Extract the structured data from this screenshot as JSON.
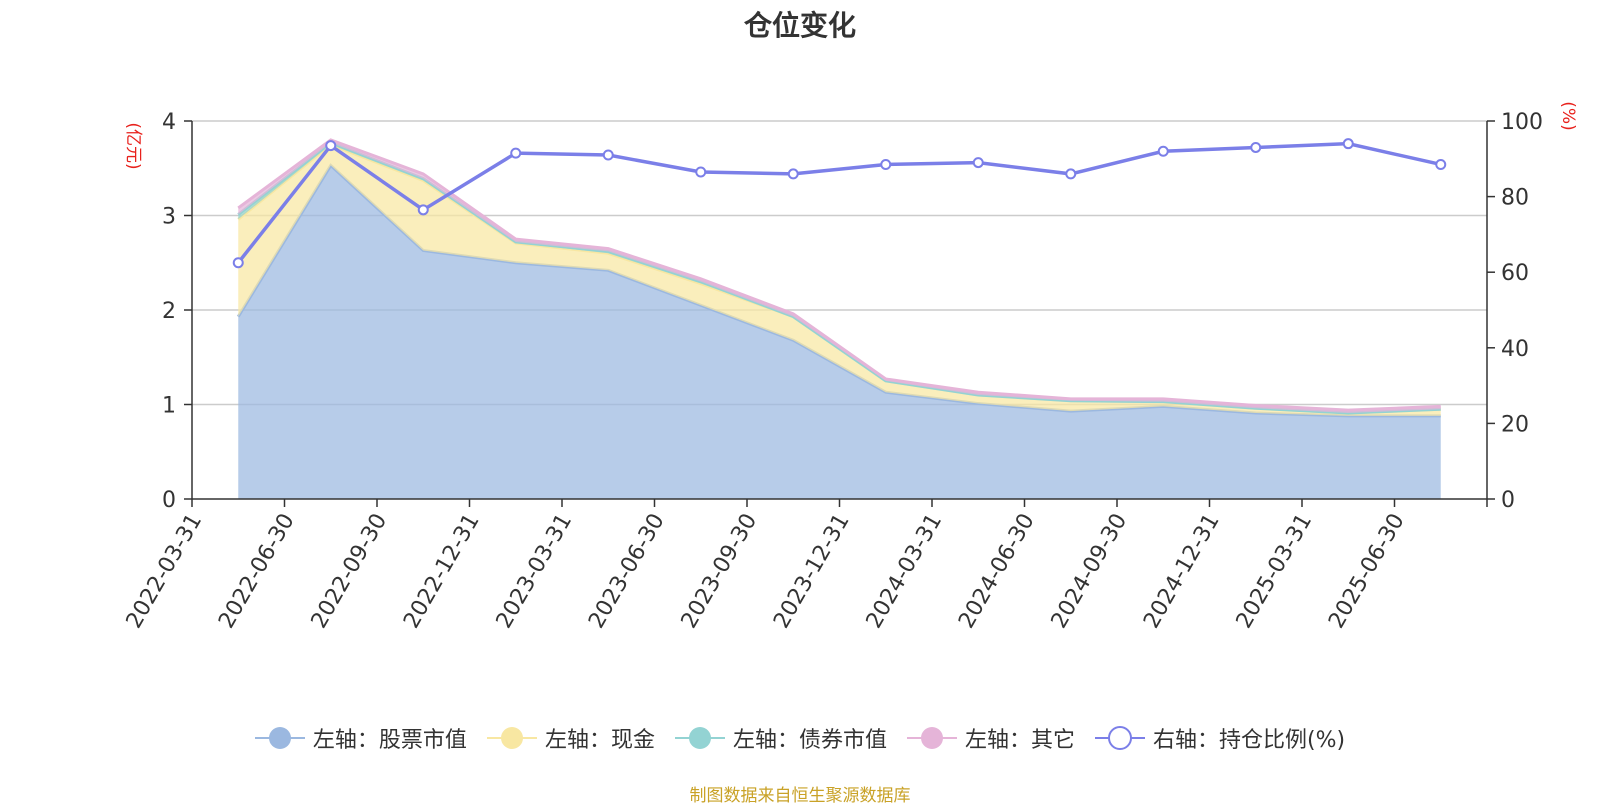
{
  "chart_data": {
    "type": "area",
    "title": "仓位变化",
    "left_axis_unit": "(亿元)",
    "right_axis_unit": "(%)",
    "categories": [
      "2022-03-31",
      "2022-06-30",
      "2022-09-30",
      "2022-12-31",
      "2023-03-31",
      "2023-06-30",
      "2023-09-30",
      "2023-12-31",
      "2024-03-31",
      "2024-06-30",
      "2024-09-30",
      "2024-12-31",
      "2025-03-31",
      "2025-06-30"
    ],
    "ylim_left": [
      0,
      4
    ],
    "yticks_left": [
      "0",
      "1",
      "2",
      "3",
      "4"
    ],
    "ylim_right": [
      0,
      100
    ],
    "yticks_right": [
      "0",
      "20",
      "40",
      "60",
      "80",
      "100"
    ],
    "grid": true,
    "stacked": true,
    "series": [
      {
        "name": "左轴：股票市值",
        "axis": "left",
        "color": "#9bb8e0",
        "values": [
          1.93,
          3.53,
          2.63,
          2.5,
          2.42,
          2.05,
          1.68,
          1.13,
          1.01,
          0.93,
          0.98,
          0.91,
          0.88,
          0.88
        ]
      },
      {
        "name": "左轴：现金",
        "axis": "left",
        "color": "#f8e7a2",
        "values": [
          1.03,
          0.22,
          0.74,
          0.21,
          0.18,
          0.23,
          0.25,
          0.12,
          0.09,
          0.11,
          0.05,
          0.05,
          0.03,
          0.07
        ]
      },
      {
        "name": "左轴：债券市值",
        "axis": "left",
        "color": "#93d3d3",
        "values": [
          0.05,
          0.02,
          0.02,
          0.01,
          0.02,
          0.02,
          0.0,
          0.0,
          0.0,
          0.0,
          0.0,
          0.0,
          0.0,
          0.0
        ]
      },
      {
        "name": "左轴：其它",
        "axis": "left",
        "color": "#e5b4d8",
        "values": [
          0.07,
          0.03,
          0.05,
          0.03,
          0.03,
          0.03,
          0.03,
          0.02,
          0.03,
          0.02,
          0.03,
          0.03,
          0.03,
          0.03
        ]
      },
      {
        "name": "右轴：持仓比例(%)",
        "axis": "right",
        "type": "line",
        "color": "#7b7fe8",
        "values": [
          62.5,
          93.5,
          76.5,
          91.5,
          91.0,
          86.5,
          86.0,
          88.5,
          89.0,
          86.0,
          92.0,
          93.0,
          94.0,
          88.5
        ]
      }
    ]
  },
  "source_note": "制图数据来自恒生聚源数据库"
}
